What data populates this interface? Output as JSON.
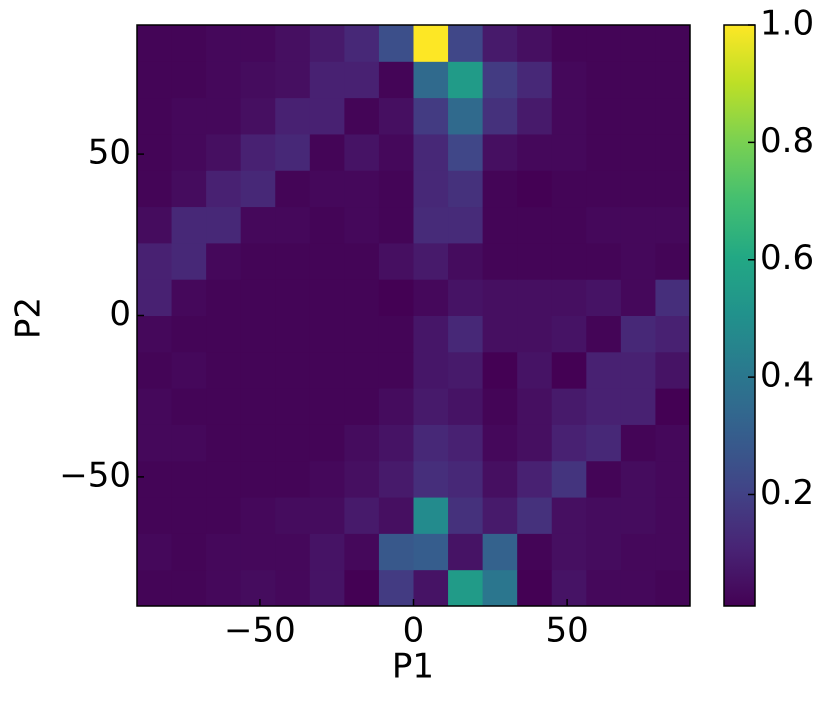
{
  "chart_data": {
    "type": "heatmap",
    "xlabel": "P1",
    "ylabel": "P2",
    "x_bins": [
      -90,
      -78.75,
      -67.5,
      -56.25,
      -45,
      -33.75,
      -22.5,
      -11.25,
      0,
      11.25,
      22.5,
      33.75,
      45,
      56.25,
      67.5,
      78.75,
      90
    ],
    "y_bins": [
      -90,
      -78.75,
      -67.5,
      -56.25,
      -45,
      -33.75,
      -22.5,
      -11.25,
      0,
      11.25,
      22.5,
      33.75,
      45,
      56.25,
      67.5,
      78.75,
      90
    ],
    "z": [
      [
        0.02,
        0.02,
        0.03,
        0.04,
        0.03,
        0.06,
        0.01,
        0.18,
        0.06,
        0.55,
        0.4,
        0.01,
        0.06,
        0.03,
        0.03,
        0.02
      ],
      [
        0.03,
        0.02,
        0.03,
        0.03,
        0.03,
        0.06,
        0.03,
        0.28,
        0.3,
        0.06,
        0.32,
        0.02,
        0.05,
        0.04,
        0.03,
        0.03
      ],
      [
        0.02,
        0.02,
        0.02,
        0.03,
        0.04,
        0.04,
        0.08,
        0.05,
        0.48,
        0.15,
        0.08,
        0.15,
        0.05,
        0.04,
        0.04,
        0.03
      ],
      [
        0.02,
        0.02,
        0.02,
        0.02,
        0.02,
        0.03,
        0.05,
        0.08,
        0.14,
        0.12,
        0.05,
        0.1,
        0.16,
        0.02,
        0.04,
        0.03
      ],
      [
        0.03,
        0.03,
        0.02,
        0.02,
        0.02,
        0.02,
        0.04,
        0.06,
        0.12,
        0.1,
        0.03,
        0.05,
        0.1,
        0.12,
        0.02,
        0.03
      ],
      [
        0.03,
        0.02,
        0.02,
        0.02,
        0.02,
        0.02,
        0.02,
        0.04,
        0.08,
        0.06,
        0.02,
        0.05,
        0.08,
        0.1,
        0.1,
        0.01
      ],
      [
        0.02,
        0.03,
        0.02,
        0.02,
        0.02,
        0.02,
        0.02,
        0.02,
        0.07,
        0.08,
        0.01,
        0.06,
        0.01,
        0.1,
        0.1,
        0.06
      ],
      [
        0.03,
        0.02,
        0.02,
        0.02,
        0.02,
        0.02,
        0.02,
        0.02,
        0.07,
        0.12,
        0.05,
        0.05,
        0.06,
        0.02,
        0.12,
        0.1
      ],
      [
        0.1,
        0.03,
        0.02,
        0.02,
        0.02,
        0.02,
        0.02,
        0.01,
        0.03,
        0.06,
        0.05,
        0.05,
        0.05,
        0.06,
        0.03,
        0.14
      ],
      [
        0.1,
        0.12,
        0.03,
        0.02,
        0.02,
        0.02,
        0.02,
        0.05,
        0.08,
        0.04,
        0.02,
        0.02,
        0.02,
        0.02,
        0.03,
        0.02
      ],
      [
        0.04,
        0.12,
        0.12,
        0.03,
        0.03,
        0.02,
        0.03,
        0.02,
        0.13,
        0.13,
        0.02,
        0.02,
        0.02,
        0.03,
        0.03,
        0.03
      ],
      [
        0.02,
        0.04,
        0.1,
        0.12,
        0.02,
        0.03,
        0.03,
        0.02,
        0.12,
        0.15,
        0.02,
        0.01,
        0.02,
        0.02,
        0.02,
        0.02
      ],
      [
        0.02,
        0.03,
        0.05,
        0.1,
        0.12,
        0.02,
        0.06,
        0.03,
        0.12,
        0.22,
        0.05,
        0.03,
        0.03,
        0.02,
        0.02,
        0.02
      ],
      [
        0.02,
        0.03,
        0.03,
        0.05,
        0.1,
        0.1,
        0.02,
        0.05,
        0.18,
        0.35,
        0.15,
        0.08,
        0.03,
        0.02,
        0.02,
        0.02
      ],
      [
        0.02,
        0.02,
        0.03,
        0.04,
        0.05,
        0.1,
        0.1,
        0.02,
        0.35,
        0.55,
        0.18,
        0.12,
        0.03,
        0.02,
        0.02,
        0.02
      ],
      [
        0.02,
        0.02,
        0.03,
        0.03,
        0.05,
        0.08,
        0.12,
        0.25,
        1.0,
        0.22,
        0.08,
        0.05,
        0.02,
        0.02,
        0.02,
        0.02
      ]
    ],
    "xlim": [
      -90,
      90
    ],
    "ylim": [
      -90,
      90
    ],
    "xticks": [
      {
        "value": -50,
        "label": "−50"
      },
      0,
      50
    ],
    "yticks": [
      {
        "value": -50,
        "label": "−50"
      },
      0,
      50
    ],
    "colormap": "viridis",
    "clim": [
      0.01,
      1
    ],
    "cticks": [
      0.2,
      0.4,
      0.6,
      0.8,
      {
        "value": 1,
        "label": "1.0"
      }
    ]
  }
}
